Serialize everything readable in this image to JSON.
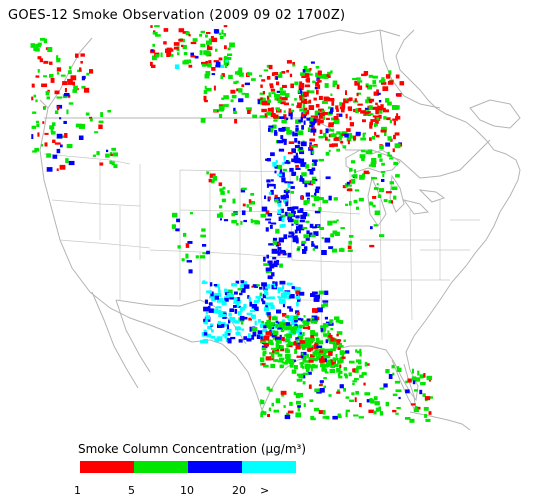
{
  "title": "GOES-12 Smoke Observation (2009 09 02  1700Z)",
  "legend": {
    "title": "Smoke Column Concentration (µg/m³)",
    "bins": [
      {
        "color": "#ff0000"
      },
      {
        "color": "#00e600"
      },
      {
        "color": "#0000ff"
      },
      {
        "color": "#00ffff"
      }
    ],
    "ticks": [
      "1",
      "5",
      "10",
      "20",
      ">"
    ]
  },
  "map": {
    "boundary_color": "#b4b4b4",
    "background": "#ffffff"
  }
}
